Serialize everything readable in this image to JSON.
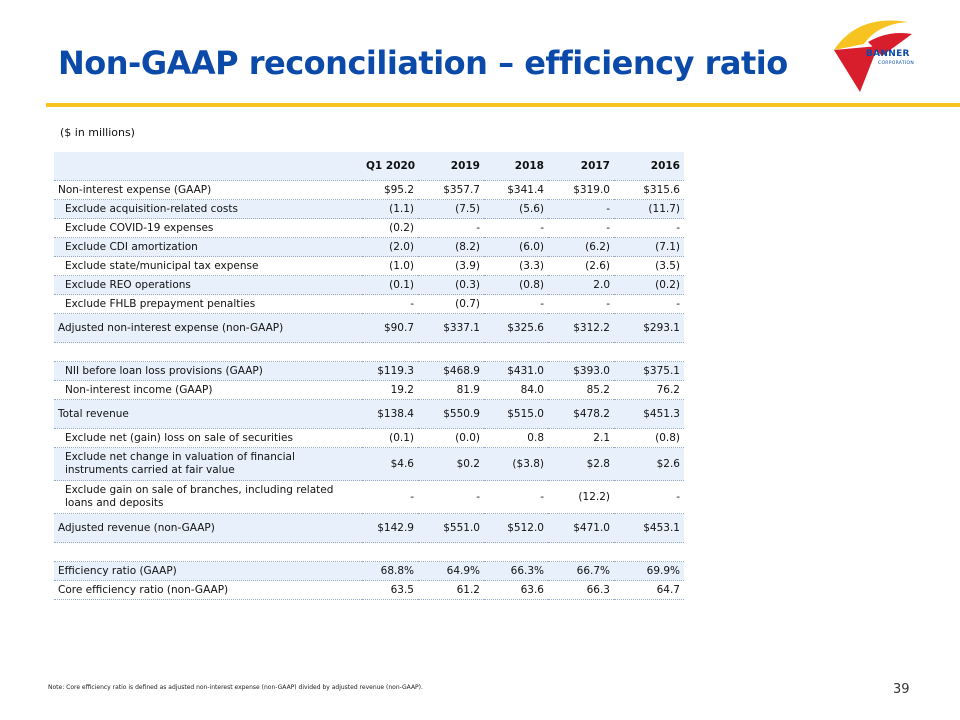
{
  "slide": {
    "title": "Non-GAAP reconciliation – efficiency ratio",
    "units_label": "($ in millions)",
    "footnote": "Note: Core efficiency ratio is defined as adjusted non-interest expense (non-GAAP) divided by adjusted revenue (non-GAAP).",
    "page_number": "39"
  },
  "logo": {
    "name": "BANNER",
    "subtitle": "CORPORATION",
    "colors": {
      "yellow": "#f7c320",
      "red": "#d81e2c",
      "blue": "#0b4aa8"
    }
  },
  "colors": {
    "title": "#0b4aa8",
    "accent_rule": "#f7c320",
    "row_shade": "#e7f0fb"
  },
  "table": {
    "headers": [
      "Q1 2020",
      "2019",
      "2018",
      "2017",
      "2016"
    ],
    "rows": [
      {
        "label": "Non-interest expense (GAAP)",
        "values": [
          "$95.2",
          "$357.7",
          "$341.4",
          "$319.0",
          "$315.6"
        ]
      },
      {
        "label": "Exclude acquisition-related costs",
        "values": [
          "(1.1)",
          "(7.5)",
          "(5.6)",
          "-",
          "(11.7)"
        ]
      },
      {
        "label": "Exclude COVID-19 expenses",
        "values": [
          "(0.2)",
          "-",
          "-",
          "-",
          "-"
        ]
      },
      {
        "label": "Exclude CDI amortization",
        "values": [
          "(2.0)",
          "(8.2)",
          "(6.0)",
          "(6.2)",
          "(7.1)"
        ]
      },
      {
        "label": "Exclude state/municipal tax expense",
        "values": [
          "(1.0)",
          "(3.9)",
          "(3.3)",
          "(2.6)",
          "(3.5)"
        ]
      },
      {
        "label": "Exclude REO operations",
        "values": [
          "(0.1)",
          "(0.3)",
          "(0.8)",
          "2.0",
          "(0.2)"
        ]
      },
      {
        "label": "Exclude FHLB prepayment penalties",
        "values": [
          "-",
          "(0.7)",
          "-",
          "-",
          "-"
        ]
      },
      {
        "label": "Adjusted non-interest expense (non-GAAP)",
        "values": [
          "$90.7",
          "$337.1",
          "$325.6",
          "$312.2",
          "$293.1"
        ]
      },
      {
        "label": "NII before loan loss provisions (GAAP)",
        "values": [
          "$119.3",
          "$468.9",
          "$431.0",
          "$393.0",
          "$375.1"
        ]
      },
      {
        "label": "Non-interest income (GAAP)",
        "values": [
          "19.2",
          "81.9",
          "84.0",
          "85.2",
          "76.2"
        ]
      },
      {
        "label": "Total revenue",
        "values": [
          "$138.4",
          "$550.9",
          "$515.0",
          "$478.2",
          "$451.3"
        ]
      },
      {
        "label": "Exclude net (gain) loss on sale of securities",
        "values": [
          "(0.1)",
          "(0.0)",
          "0.8",
          "2.1",
          "(0.8)"
        ]
      },
      {
        "label": "Exclude net change in valuation of financial instruments carried at fair value",
        "values": [
          "$4.6",
          "$0.2",
          "($3.8)",
          "$2.8",
          "$2.6"
        ]
      },
      {
        "label": "Exclude gain on sale of branches, including related loans and deposits",
        "values": [
          "-",
          "-",
          "-",
          "(12.2)",
          "-"
        ]
      },
      {
        "label": "Adjusted revenue (non-GAAP)",
        "values": [
          "$142.9",
          "$551.0",
          "$512.0",
          "$471.0",
          "$453.1"
        ]
      },
      {
        "label": "Efficiency ratio (GAAP)",
        "values": [
          "68.8%",
          "64.9%",
          "66.3%",
          "66.7%",
          "69.9%"
        ]
      },
      {
        "label": "Core efficiency ratio (non-GAAP)",
        "values": [
          "63.5",
          "61.2",
          "63.6",
          "66.3",
          "64.7"
        ]
      }
    ]
  }
}
